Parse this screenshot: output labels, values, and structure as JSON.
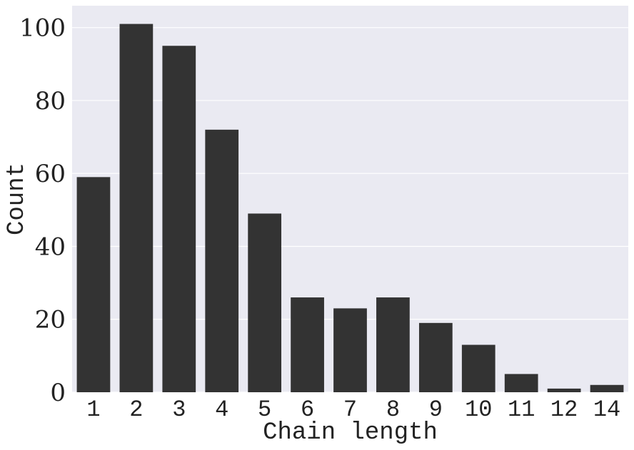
{
  "chart_data": {
    "type": "bar",
    "categories": [
      "1",
      "2",
      "3",
      "4",
      "5",
      "6",
      "7",
      "8",
      "9",
      "10",
      "11",
      "12",
      "14"
    ],
    "values": [
      59,
      101,
      95,
      72,
      49,
      26,
      23,
      26,
      19,
      13,
      5,
      1,
      2
    ],
    "xlabel": "Chain length",
    "ylabel": "Count",
    "ylim": [
      0,
      106
    ],
    "yticks": [
      0,
      20,
      40,
      60,
      80,
      100
    ],
    "grid": true,
    "colors": {
      "background": "#eaeaf2",
      "bar": "#333333",
      "grid": "#ffffff"
    }
  }
}
